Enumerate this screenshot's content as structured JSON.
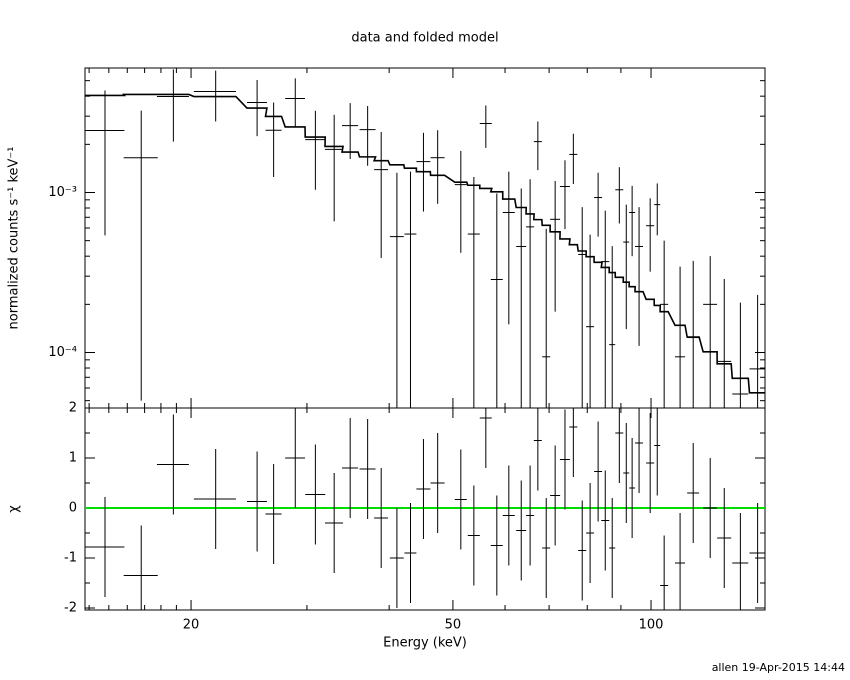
{
  "chart_data": {
    "type": "errorbar",
    "title": "data and folded model",
    "xlabel": "Energy (keV)",
    "footer": "allen 19-Apr-2015 14:44",
    "log_x": true,
    "xlim": [
      13.8,
      149
    ],
    "xticks": [
      20,
      50,
      100
    ],
    "xminor": [
      14,
      15,
      16,
      17,
      18,
      19,
      30,
      40,
      60,
      70,
      80,
      90
    ],
    "x": [
      14.8,
      16.8,
      18.8,
      21.8,
      25.2,
      26.7,
      28.8,
      30.9,
      33.0,
      34.9,
      37.1,
      38.9,
      41.1,
      43.1,
      45.1,
      47.4,
      51.4,
      53.8,
      56.1,
      58.3,
      60.8,
      63.5,
      65.5,
      67.3,
      69.3,
      71.5,
      74.0,
      76.2,
      78.6,
      80.8,
      83.1,
      85.2,
      87.3,
      89.5,
      91.7,
      93.6,
      95.9,
      99.7,
      102.2,
      104.7,
      110.7,
      115.9,
      123.0,
      129.2,
      136.7,
      145.2
    ],
    "xerr": [
      1.04,
      1.0,
      1.05,
      1.6,
      0.88,
      0.75,
      1.0,
      1.08,
      1.04,
      0.98,
      1.04,
      0.95,
      1.0,
      0.9,
      1.1,
      1.16,
      1.08,
      1.13,
      1.18,
      1.22,
      1.28,
      1.11,
      0.92,
      0.94,
      0.97,
      1.25,
      1.3,
      1.07,
      1.1,
      1.13,
      1.16,
      1.19,
      0.92,
      1.25,
      0.96,
      0.98,
      1.34,
      1.4,
      1.07,
      1.47,
      1.94,
      2.43,
      3.0,
      3.17,
      3.83,
      4.07
    ],
    "panels": [
      {
        "ylabel": "normalized counts s⁻¹ keV⁻¹",
        "log_y": true,
        "ylim": [
          4.5e-05,
          0.006
        ],
        "yticks": [
          {
            "value": 0.001,
            "label": "10⁻³"
          },
          {
            "value": 0.0001,
            "label": "10⁻⁴"
          }
        ],
        "yminor": [
          5e-05,
          6e-05,
          7e-05,
          8e-05,
          9e-05,
          0.0002,
          0.0003,
          0.0004,
          0.0005,
          0.0006,
          0.0007,
          0.0008,
          0.0009,
          0.002,
          0.003,
          0.004,
          0.005
        ],
        "data": {
          "color": "#000000",
          "values": [
            0.00244,
            0.00165,
            0.00398,
            0.00428,
            0.00365,
            0.00245,
            0.00387,
            0.00214,
            0.00186,
            0.00262,
            0.00247,
            0.00139,
            0.00053,
            0.00055,
            0.00156,
            0.00165,
            0.00112,
            0.00055,
            0.0027,
            0.000286,
            0.00075,
            0.00046,
            0.00061,
            0.00208,
            9.4e-05,
            0.00068,
            0.00109,
            0.00173,
            0.00041,
            0.000145,
            0.00093,
            0.00037,
            0.000112,
            0.00104,
            0.00049,
            0.00075,
            0.00046,
            0.00062,
            0.00084,
            0.0002,
            9.4e-05,
            0.000124,
            0.0002,
            8.8e-05,
            5.5e-05,
            7.9e-05
          ],
          "yerr": [
            0.0019,
            0.0016,
            0.0019,
            0.0015,
            0.0014,
            0.0012,
            0.0013,
            0.0011,
            0.0012,
            0.001,
            0.001,
            0.001,
            0.0008,
            0.0008,
            0.0008,
            0.0008,
            0.0007,
            0.0007,
            0.0008,
            0.0007,
            0.0006,
            0.0006,
            0.0006,
            0.0007,
            0.0005,
            0.0005,
            0.0005,
            0.0006,
            0.0004,
            0.0004,
            0.0004,
            0.0004,
            0.00035,
            0.0004,
            0.00035,
            0.00035,
            0.00035,
            0.0003,
            0.0003,
            0.0003,
            0.00025,
            0.00025,
            0.0002,
            0.0002,
            0.00015,
            0.00015
          ]
        },
        "model": {
          "color": "#000000",
          "values": [
            0.00404,
            0.0041,
            0.0041,
            0.00398,
            0.00337,
            0.00299,
            0.00257,
            0.00222,
            0.00194,
            0.00179,
            0.00167,
            0.00158,
            0.00149,
            0.00142,
            0.00135,
            0.00128,
            0.00116,
            0.00111,
            0.00106,
            0.00101,
            0.00091,
            0.000806,
            0.000735,
            0.000677,
            0.000624,
            0.000568,
            0.000513,
            0.000472,
            0.000431,
            0.000397,
            0.000366,
            0.00034,
            0.000316,
            0.000295,
            0.000275,
            0.000258,
            0.00024,
            0.000215,
            0.000197,
            0.00018,
            0.000148,
            0.000125,
            0.000101,
            8.5e-05,
            6.9e-05,
            5.6e-05
          ]
        }
      },
      {
        "ylabel": "χ",
        "log_y": false,
        "ylim": [
          -2.04,
          2
        ],
        "yticks": [
          -2,
          -1,
          0,
          1,
          2
        ],
        "yminor": [
          -1.5,
          -0.5,
          0.5,
          1.5
        ],
        "reference": {
          "value": 0,
          "color": "#00dd00"
        },
        "data": {
          "color": "#000000",
          "values": [
            -0.78,
            -1.35,
            0.87,
            0.18,
            0.13,
            -0.12,
            1.0,
            0.27,
            -0.3,
            0.8,
            0.78,
            -0.2,
            -1.0,
            -0.9,
            0.38,
            0.5,
            0.17,
            -0.55,
            1.8,
            -0.75,
            -0.15,
            -0.45,
            -0.15,
            1.35,
            -0.8,
            0.25,
            0.97,
            1.62,
            -0.85,
            -0.5,
            0.73,
            -0.25,
            -0.8,
            1.5,
            0.7,
            0.4,
            1.3,
            0.9,
            1.25,
            -1.55,
            -1.1,
            0.3,
            0,
            -0.6,
            -1.1,
            -0.9
          ],
          "yerr": [
            1,
            1,
            1,
            1,
            1,
            1,
            1,
            1,
            1,
            1,
            1,
            1,
            1,
            1,
            1,
            1,
            1,
            1,
            1,
            1,
            1,
            1,
            1,
            1,
            1,
            1,
            1,
            1,
            1,
            1,
            1,
            1,
            1,
            1,
            1,
            1,
            1,
            1,
            1,
            1,
            1,
            1,
            1,
            1,
            1,
            1
          ]
        }
      }
    ]
  }
}
